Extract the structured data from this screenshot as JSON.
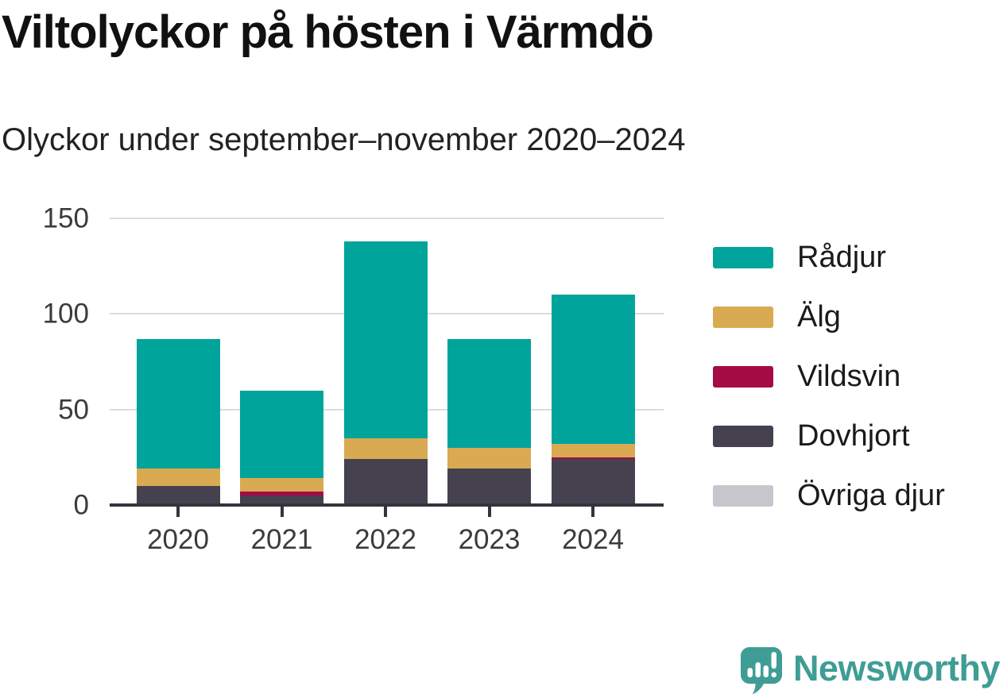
{
  "header": {
    "title": "Viltolyckor på hösten i Värmdö",
    "subtitle": "Olyckor under september–november 2020–2024"
  },
  "chart_data": {
    "type": "bar",
    "stacked": true,
    "title": "Viltolyckor på hösten i Värmdö",
    "subtitle": "Olyckor under september–november 2020–2024",
    "categories": [
      "2020",
      "2021",
      "2022",
      "2023",
      "2024"
    ],
    "series": [
      {
        "name": "Rådjur",
        "color": "#00a49b",
        "values": [
          68,
          46,
          103,
          57,
          78
        ]
      },
      {
        "name": "Älg",
        "color": "#d9aa51",
        "values": [
          9,
          7,
          11,
          11,
          7
        ]
      },
      {
        "name": "Vildsvin",
        "color": "#a50b45",
        "values": [
          0,
          2,
          0,
          0,
          1
        ]
      },
      {
        "name": "Dovhjort",
        "color": "#45414e",
        "values": [
          10,
          5,
          24,
          19,
          24
        ]
      },
      {
        "name": "Övriga djur",
        "color": "#c7c6cd",
        "values": [
          0,
          0,
          0,
          0,
          0
        ]
      }
    ],
    "stack_order_bottom_to_top": [
      "Dovhjort",
      "Vildsvin",
      "Älg",
      "Rådjur",
      "Övriga djur"
    ],
    "totals": [
      87,
      60,
      138,
      87,
      110
    ],
    "y_ticks": [
      0,
      50,
      100,
      150
    ],
    "y_tick_labels": [
      "0",
      "50",
      "100",
      "150"
    ],
    "ylim": [
      0,
      150
    ],
    "xlabel": "",
    "ylabel": "",
    "grid": true,
    "legend_position": "right"
  },
  "footer": {
    "brand": "Newsworthy",
    "logo_icon": "newsworthy-speech-bubble-bar-chart-icon"
  },
  "colors": {
    "radjur_teal": "#00a49b",
    "alg_gold": "#d9aa51",
    "vildsvin_crimson": "#a50b45",
    "dovhjort_slate": "#45414e",
    "ovriga_gray": "#c7c6cd",
    "gridline": "#dcdcdc",
    "axis": "#35343d",
    "tick_text": "#3b3b3b",
    "title_text": "#111111",
    "logo_teal": "#3f9d95"
  }
}
